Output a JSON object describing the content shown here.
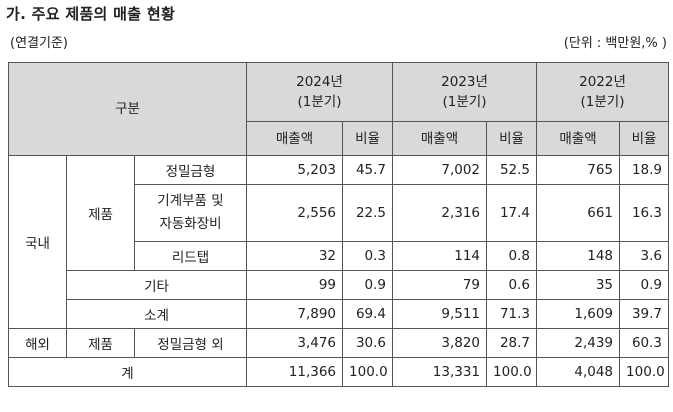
{
  "title": "가. 주요 제품의 매출 현황",
  "subtitle_left": "(연결기준)",
  "subtitle_right": "(단위 : 백만원,% )",
  "header": {
    "category": "구분",
    "years": [
      {
        "year": "2024년",
        "period": "(1분기)"
      },
      {
        "year": "2023년",
        "period": "(1분기)"
      },
      {
        "year": "2022년",
        "period": "(1분기)"
      }
    ],
    "col_sales": "매출액",
    "col_ratio": "비율"
  },
  "labels": {
    "domestic": "국내",
    "overseas": "해외",
    "product": "제품",
    "product2": "제품",
    "total": "계"
  },
  "rows": {
    "precision_mold": {
      "label": "정밀금형",
      "values": [
        "5,203",
        "45.7",
        "7,002",
        "52.5",
        "765",
        "18.9"
      ]
    },
    "machine_parts": {
      "label_line1": "기계부품 및",
      "label_line2": "자동화장비",
      "values": [
        "2,556",
        "22.5",
        "2,316",
        "17.4",
        "661",
        "16.3"
      ]
    },
    "lead_tap": {
      "label": "리드탭",
      "values": [
        "32",
        "0.3",
        "114",
        "0.8",
        "148",
        "3.6"
      ]
    },
    "other": {
      "label": "기타",
      "values": [
        "99",
        "0.9",
        "79",
        "0.6",
        "35",
        "0.9"
      ]
    },
    "subtotal": {
      "label": "소계",
      "values": [
        "7,890",
        "69.4",
        "9,511",
        "71.3",
        "1,609",
        "39.7"
      ]
    },
    "overseas_mold": {
      "label": "정밀금형 외",
      "values": [
        "3,476",
        "30.6",
        "3,820",
        "28.7",
        "2,439",
        "60.3"
      ]
    },
    "total": {
      "values": [
        "11,366",
        "100.0",
        "13,331",
        "100.0",
        "4,048",
        "100.0"
      ]
    }
  }
}
